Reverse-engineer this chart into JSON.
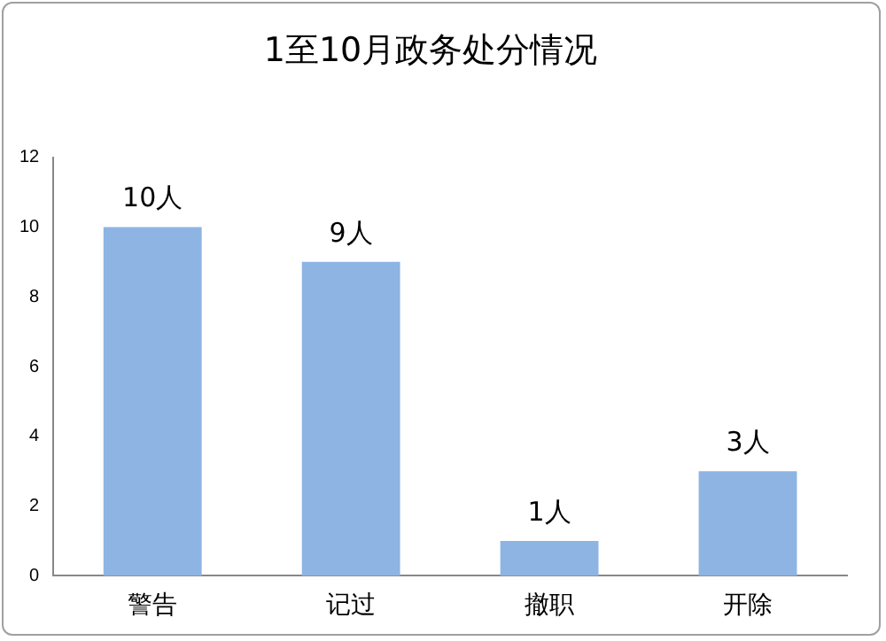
{
  "chart_data": {
    "type": "bar",
    "title": "1至10月政务处分情况",
    "categories": [
      "警告",
      "记过",
      "撤职",
      "开除"
    ],
    "values": [
      10,
      9,
      1,
      3
    ],
    "color": "#8eb4e3",
    "value_labels": [
      "10人",
      "9人",
      "1人",
      "3人"
    ],
    "ylim": [
      0,
      12
    ],
    "yticks": [
      0,
      2,
      4,
      6,
      8,
      10,
      12
    ],
    "grid": false,
    "legend": false
  }
}
